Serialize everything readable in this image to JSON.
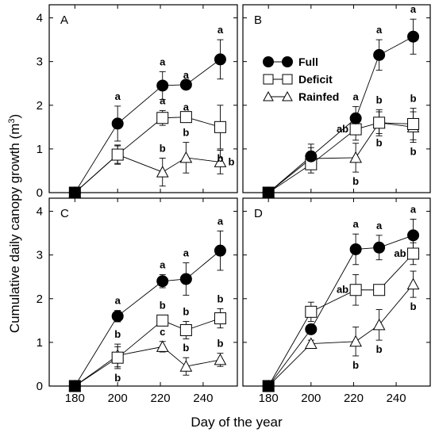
{
  "figure": {
    "ylabel_main": "Cumulative daily canopy growth (m",
    "ylabel_sup": "3",
    "ylabel_close": ")",
    "xlabel": "Day of the year"
  },
  "legend": {
    "position": "top-right of panel B",
    "entries": [
      {
        "name": "Full",
        "marker": "filled-circle"
      },
      {
        "name": "Deficit",
        "marker": "open-square"
      },
      {
        "name": "Rainfed",
        "marker": "open-triangle"
      }
    ]
  },
  "colors": {
    "line": "#000000",
    "filled": "#000000",
    "open": "#ffffff",
    "frame": "#000000"
  },
  "chart_data": [
    {
      "type": "line",
      "panel": "A",
      "xlim": [
        168,
        256
      ],
      "ylim": [
        0,
        4.3
      ],
      "xticks": [
        180,
        200,
        220,
        240
      ],
      "yticks": [
        0,
        1,
        2,
        3,
        4
      ],
      "x": [
        180,
        200,
        221,
        232,
        248
      ],
      "series": [
        {
          "name": "Full",
          "marker": "filled-circle",
          "values": [
            0,
            1.58,
            2.45,
            2.47,
            3.05
          ],
          "errors": [
            0,
            0.4,
            0.32,
            0,
            0.45
          ],
          "letters": [
            "",
            "a",
            "a",
            "a",
            "a"
          ]
        },
        {
          "name": "Deficit",
          "marker": "open-square",
          "values": [
            0,
            0.87,
            1.71,
            1.73,
            1.5
          ],
          "errors": [
            0,
            0.22,
            0.17,
            0,
            0.5
          ],
          "letters": [
            "",
            "",
            "a",
            "a",
            "b"
          ]
        },
        {
          "name": "Rainfed",
          "marker": "open-triangle",
          "values": [
            0,
            0.87,
            0.47,
            0.8,
            0.7
          ],
          "errors": [
            0,
            0.2,
            0.32,
            0.35,
            0.27
          ],
          "letters": [
            "",
            "",
            "b",
            "b",
            "b"
          ]
        }
      ]
    },
    {
      "type": "line",
      "panel": "B",
      "xlim": [
        168,
        256
      ],
      "ylim": [
        0,
        4.3
      ],
      "xticks": [
        180,
        200,
        220,
        240
      ],
      "yticks": [
        0,
        1,
        2,
        3,
        4
      ],
      "x": [
        180,
        200,
        221,
        232,
        248
      ],
      "series": [
        {
          "name": "Full",
          "marker": "filled-circle",
          "values": [
            0,
            0.83,
            1.7,
            3.15,
            3.57
          ],
          "errors": [
            0,
            0.28,
            0.27,
            0.35,
            0.4
          ],
          "letters": [
            "",
            "",
            "a",
            "a",
            "a"
          ]
        },
        {
          "name": "Deficit",
          "marker": "open-square",
          "values": [
            0,
            0.65,
            1.45,
            1.6,
            1.57
          ],
          "errors": [
            0,
            0.2,
            0.25,
            0.3,
            0.36
          ],
          "letters": [
            "",
            "",
            "ab",
            "b",
            "b"
          ]
        },
        {
          "name": "Rainfed",
          "marker": "open-triangle",
          "values": [
            0,
            0.78,
            0.8,
            1.6,
            1.5
          ],
          "errors": [
            0,
            0.25,
            0.33,
            0.25,
            0.35
          ],
          "letters": [
            "",
            "",
            "b",
            "b",
            "b"
          ]
        }
      ]
    },
    {
      "type": "line",
      "panel": "C",
      "xlim": [
        168,
        256
      ],
      "ylim": [
        0,
        4.3
      ],
      "xticks": [
        180,
        200,
        220,
        240
      ],
      "yticks": [
        0,
        1,
        2,
        3,
        4
      ],
      "x": [
        180,
        200,
        221,
        232,
        248
      ],
      "series": [
        {
          "name": "Full",
          "marker": "filled-circle",
          "values": [
            0,
            1.6,
            2.4,
            2.45,
            3.1
          ],
          "errors": [
            0,
            0.13,
            0.15,
            0.37,
            0.45
          ],
          "letters": [
            "",
            "a",
            "a",
            "a",
            "a"
          ]
        },
        {
          "name": "Deficit",
          "marker": "open-square",
          "values": [
            0,
            0.65,
            1.5,
            1.28,
            1.55
          ],
          "errors": [
            0,
            0.25,
            0.12,
            0.2,
            0.22
          ],
          "letters": [
            "",
            "b",
            "b",
            "b",
            "b"
          ]
        },
        {
          "name": "Rainfed",
          "marker": "open-triangle",
          "values": [
            0,
            0.7,
            0.9,
            0.45,
            0.6
          ],
          "errors": [
            0,
            0.26,
            0.12,
            0.2,
            0.15
          ],
          "letters": [
            "",
            "b",
            "c",
            "b",
            "b"
          ]
        }
      ]
    },
    {
      "type": "line",
      "panel": "D",
      "xlim": [
        168,
        256
      ],
      "ylim": [
        0,
        4.3
      ],
      "xticks": [
        180,
        200,
        220,
        240
      ],
      "yticks": [
        0,
        1,
        2,
        3,
        4
      ],
      "x": [
        180,
        200,
        221,
        232,
        248
      ],
      "series": [
        {
          "name": "Full",
          "marker": "filled-circle",
          "values": [
            0,
            1.3,
            3.13,
            3.17,
            3.45
          ],
          "errors": [
            0,
            0,
            0.35,
            0.28,
            0.37
          ],
          "letters": [
            "",
            "",
            "a",
            "a",
            "a"
          ]
        },
        {
          "name": "Deficit",
          "marker": "open-square",
          "values": [
            0,
            1.7,
            2.2,
            2.2,
            3.03
          ],
          "errors": [
            0,
            0.22,
            0.35,
            0.12,
            0.25
          ],
          "letters": [
            "",
            "",
            "ab",
            "",
            "ab"
          ]
        },
        {
          "name": "Rainfed",
          "marker": "open-triangle",
          "values": [
            0,
            0.97,
            1.02,
            1.4,
            2.33
          ],
          "errors": [
            0,
            0.08,
            0.33,
            0.35,
            0.3
          ],
          "letters": [
            "",
            "",
            "b",
            "b",
            "b"
          ]
        }
      ]
    }
  ]
}
